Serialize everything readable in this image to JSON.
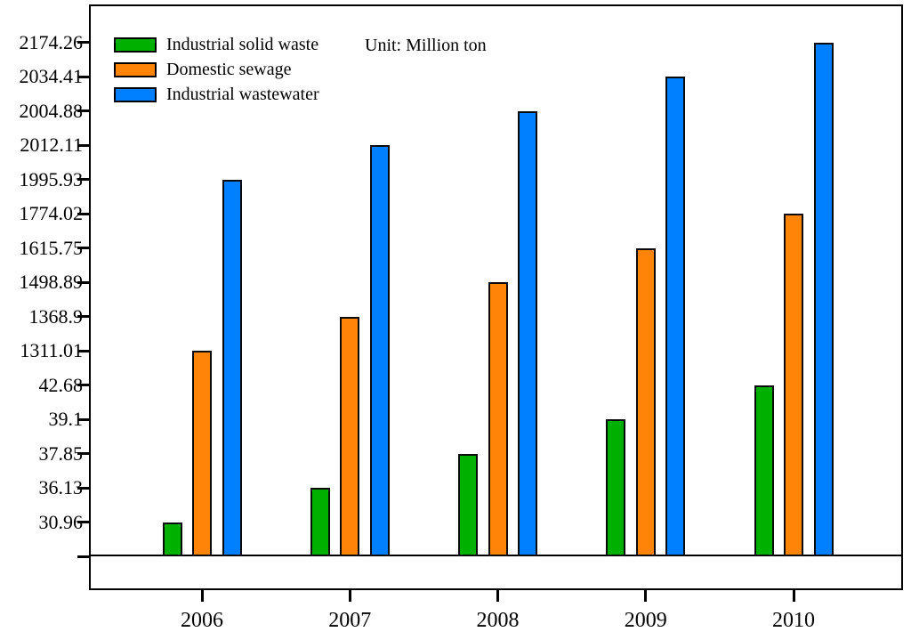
{
  "chart_data": {
    "type": "bar",
    "title": "",
    "unit_label": "Unit: Million ton",
    "categories": [
      "2006",
      "2007",
      "2008",
      "2009",
      "2010"
    ],
    "series": [
      {
        "name": "Industrial solid waste",
        "color": "#00b000",
        "values": [
          30.96,
          36.13,
          37.85,
          39.1,
          42.68
        ],
        "value_labels": [
          "30.96",
          "36.13",
          "37.85",
          "39.1",
          "42.68"
        ]
      },
      {
        "name": "Domestic sewage",
        "color": "#ff8408",
        "values": [
          1311.01,
          1368.9,
          1498.89,
          1615.75,
          1774.02
        ],
        "value_labels": [
          "1311.01",
          "1368.9",
          "1498.89",
          "1615.75",
          "1774.02"
        ]
      },
      {
        "name": "Industrial wastewater",
        "color": "#0080ff",
        "values": [
          1995.93,
          2012.11,
          2004.88,
          2034.41,
          2174.26
        ],
        "value_labels": [
          "1995.93",
          "2012.11",
          "2004.88",
          "2034.41",
          "2174.26"
        ]
      }
    ],
    "xlabel": "",
    "ylabel": "",
    "y_axis": {
      "scale": "ordinal-ranked",
      "note": "ticks are evenly spaced; each tick label is a data value and each bar top aligns with its own value tick",
      "tick_labels_bottom_to_top": [
        "30.96",
        "36.13",
        "37.85",
        "39.1",
        "42.68",
        "1311.01",
        "1368.9",
        "1498.89",
        "1615.75",
        "1774.02",
        "1995.93",
        "2012.11",
        "2004.88",
        "2034.41",
        "2174.26"
      ]
    },
    "legend_position": "top-left-inside",
    "grid": false,
    "frame": true,
    "bar_border_color": "#0a0a0a",
    "axis_color": "#000000"
  }
}
